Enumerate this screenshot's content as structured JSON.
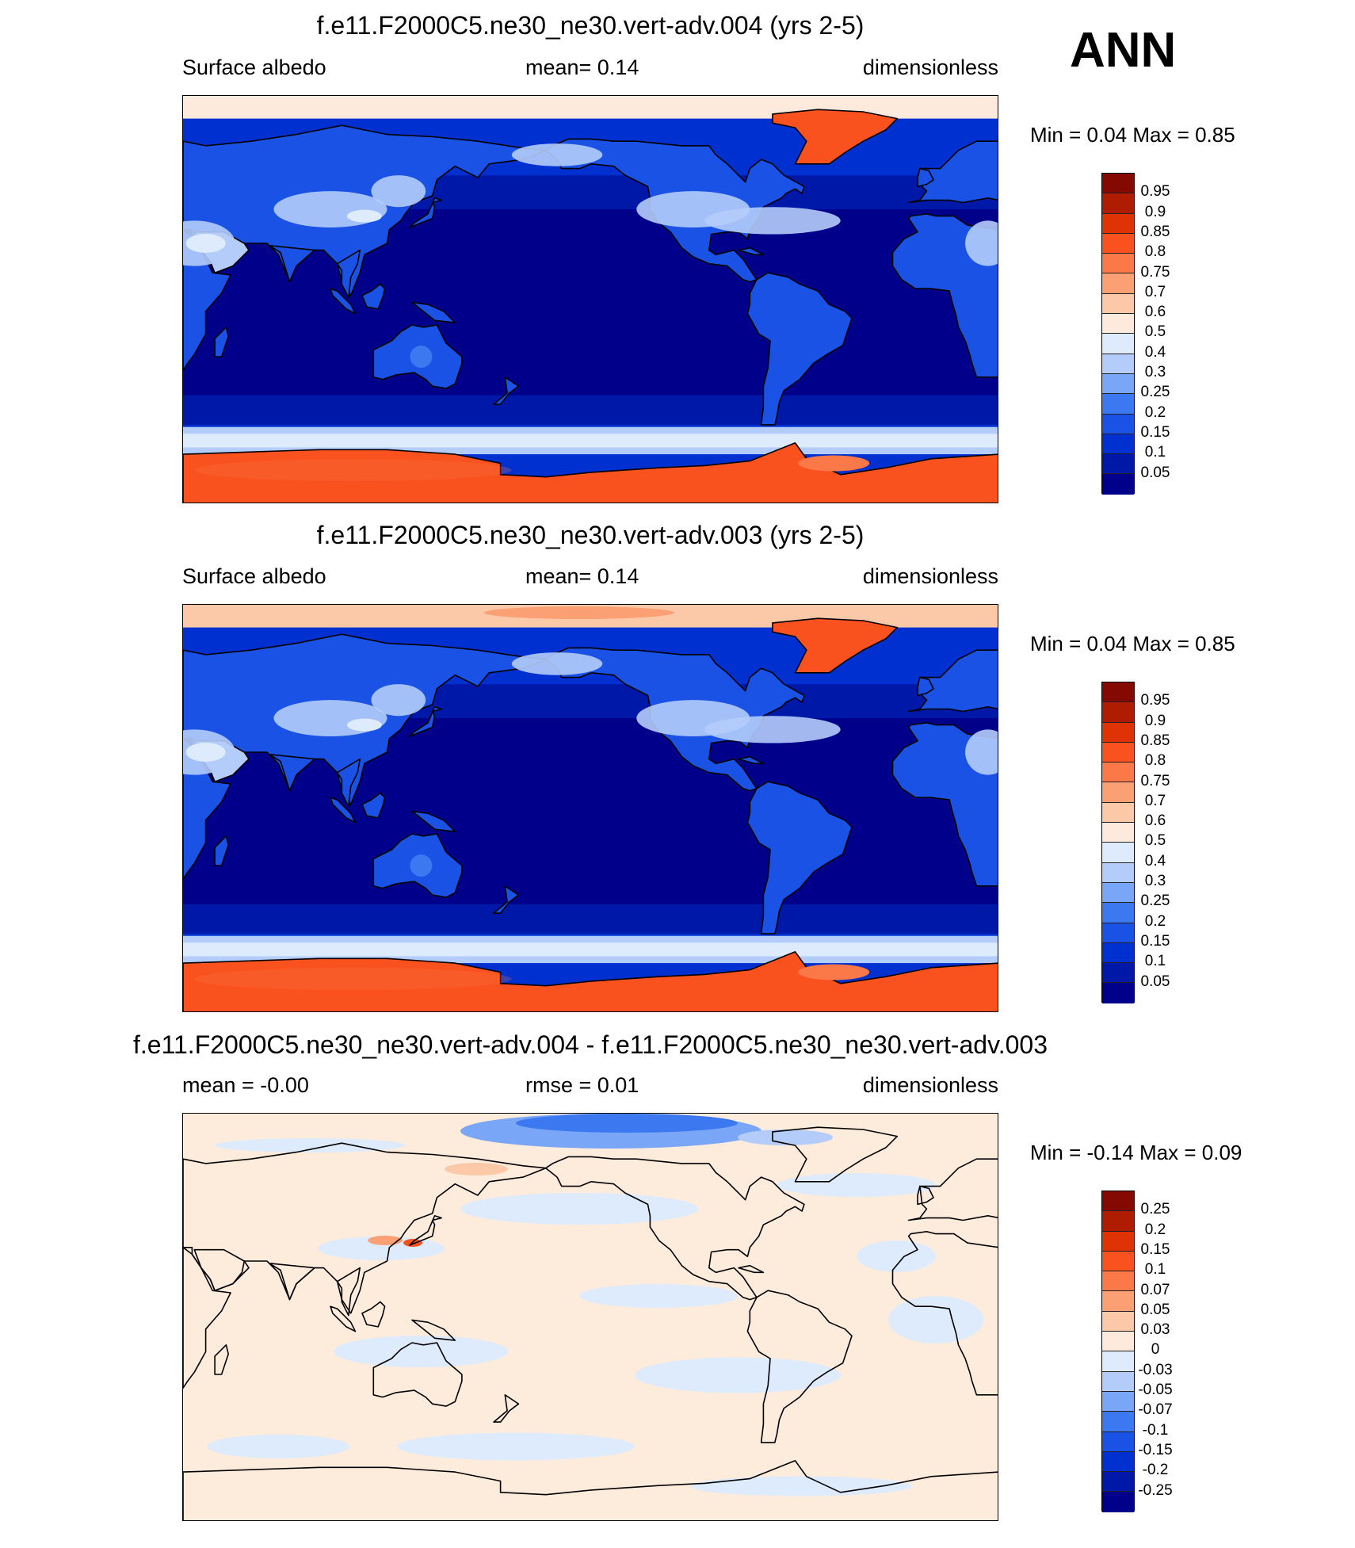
{
  "season_label": "ANN",
  "panels": [
    {
      "title": "f.e11.F2000C5.ne30_ne30.vert-adv.004 (yrs 2-5)",
      "left_label": "Surface albedo",
      "center_label": "mean=   0.14",
      "right_label": "dimensionless",
      "minmax": "Min =   0.04 Max =   0.85",
      "variant": "control",
      "colorbar": {
        "levels": [
          "0.05",
          "0.1",
          "0.15",
          "0.2",
          "0.25",
          "0.3",
          "0.4",
          "0.5",
          "0.6",
          "0.7",
          "0.75",
          "0.8",
          "0.85",
          "0.9",
          "0.95"
        ],
        "colors": [
          "#00008a",
          "#0018a8",
          "#0030d0",
          "#1a52e6",
          "#3c78f0",
          "#7aa6f7",
          "#b4ccfa",
          "#deebfd",
          "#feeadc",
          "#fbc9a8",
          "#fb9f74",
          "#fb7848",
          "#f9521e",
          "#df3306",
          "#b01c02",
          "#840900"
        ]
      }
    },
    {
      "title": "f.e11.F2000C5.ne30_ne30.vert-adv.003 (yrs 2-5)",
      "left_label": "Surface albedo",
      "center_label": "mean=   0.14",
      "right_label": "dimensionless",
      "minmax": "Min =   0.04 Max =   0.85",
      "variant": "test",
      "colorbar": {
        "levels": [
          "0.05",
          "0.1",
          "0.15",
          "0.2",
          "0.25",
          "0.3",
          "0.4",
          "0.5",
          "0.6",
          "0.7",
          "0.75",
          "0.8",
          "0.85",
          "0.9",
          "0.95"
        ],
        "colors": [
          "#00008a",
          "#0018a8",
          "#0030d0",
          "#1a52e6",
          "#3c78f0",
          "#7aa6f7",
          "#b4ccfa",
          "#deebfd",
          "#feeadc",
          "#fbc9a8",
          "#fb9f74",
          "#fb7848",
          "#f9521e",
          "#df3306",
          "#b01c02",
          "#840900"
        ]
      }
    },
    {
      "title": "f.e11.F2000C5.ne30_ne30.vert-adv.004 - f.e11.F2000C5.ne30_ne30.vert-adv.003",
      "left_label": "mean =  -0.00",
      "center_label": "rmse =   0.01",
      "right_label": "dimensionless",
      "minmax": "Min =  -0.14 Max =   0.09",
      "variant": "diff",
      "colorbar": {
        "levels": [
          "-0.25",
          "-0.2",
          "-0.15",
          "-0.1",
          "-0.07",
          "-0.05",
          "-0.03",
          "0",
          "0.03",
          "0.05",
          "0.07",
          "0.1",
          "0.15",
          "0.2",
          "0.25"
        ],
        "colors": [
          "#00008a",
          "#0018a8",
          "#0030d0",
          "#1a52e6",
          "#3c78f0",
          "#7aa6f7",
          "#b4ccfa",
          "#deebfd",
          "#feeadc",
          "#fbc9a8",
          "#fb9f74",
          "#fb7848",
          "#f9521e",
          "#df3306",
          "#b01c02",
          "#840900"
        ]
      }
    }
  ]
}
